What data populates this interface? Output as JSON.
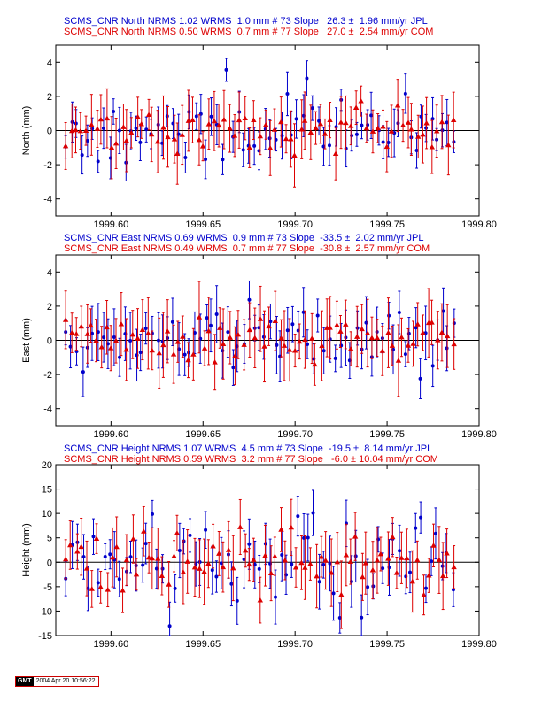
{
  "chart_data": [
    {
      "type": "scatter",
      "ylabel": "North (mm)",
      "xlim": [
        1999.57,
        1999.8
      ],
      "ylim": [
        -5,
        5
      ],
      "xticks": [
        1999.6,
        1999.65,
        1999.7,
        1999.75,
        1999.8
      ],
      "yticks": [
        -4,
        -2,
        0,
        2,
        4
      ],
      "tick_labels_x": [
        "1999.60",
        "1999.65",
        "1999.70",
        "1999.75",
        "1999.80"
      ],
      "tick_labels_y": [
        "-4",
        "-2",
        "0",
        "2",
        "4"
      ],
      "headers": [
        {
          "text": "SCMS_CNR North NRMS 1.02 WRMS  1.0 mm # 73 Slope   26.3 ±  1.96 mm/yr JPL",
          "color": "#0000cc"
        },
        {
          "text": "SCMS_CNR North NRMS 0.50 WRMS  0.7 mm # 77 Slope   27.0 ±  2.54 mm/yr COM",
          "color": "#dd0000"
        }
      ],
      "series": [
        {
          "color": "#0000cc",
          "marker": "circle",
          "noise": 1.0,
          "sigma": 1.0,
          "jitter": 1.0,
          "count": 73,
          "seed": 11
        },
        {
          "color": "#dd0000",
          "marker": "triangle",
          "noise": 0.7,
          "sigma": 1.5,
          "jitter": 0.9,
          "count": 77,
          "seed": 23
        }
      ]
    },
    {
      "type": "scatter",
      "ylabel": "East (mm)",
      "xlim": [
        1999.57,
        1999.8
      ],
      "ylim": [
        -5,
        5
      ],
      "xticks": [
        1999.6,
        1999.65,
        1999.7,
        1999.75,
        1999.8
      ],
      "yticks": [
        -4,
        -2,
        0,
        2,
        4
      ],
      "tick_labels_x": [
        "1999.60",
        "1999.65",
        "1999.70",
        "1999.75",
        "1999.80"
      ],
      "tick_labels_y": [
        "-4",
        "-2",
        "0",
        "2",
        "4"
      ],
      "headers": [
        {
          "text": "SCMS_CNR East NRMS 0.69 WRMS  0.9 mm # 73 Slope  -33.5 ±  2.02 mm/yr JPL",
          "color": "#0000cc"
        },
        {
          "text": "SCMS_CNR East NRMS 0.49 WRMS  0.7 mm # 77 Slope  -30.8 ±  2.57 mm/yr COM",
          "color": "#dd0000"
        }
      ],
      "series": [
        {
          "color": "#0000cc",
          "marker": "circle",
          "noise": 0.9,
          "sigma": 1.2,
          "jitter": 1.0,
          "count": 73,
          "seed": 37
        },
        {
          "color": "#dd0000",
          "marker": "triangle",
          "noise": 0.7,
          "sigma": 1.7,
          "jitter": 0.9,
          "count": 77,
          "seed": 53
        }
      ]
    },
    {
      "type": "scatter",
      "ylabel": "Height (mm)",
      "xlim": [
        1999.57,
        1999.8
      ],
      "ylim": [
        -15,
        20
      ],
      "xticks": [
        1999.6,
        1999.65,
        1999.7,
        1999.75,
        1999.8
      ],
      "yticks": [
        -15,
        -10,
        -5,
        0,
        5,
        10,
        15,
        20
      ],
      "tick_labels_x": [
        "1999.60",
        "1999.65",
        "1999.70",
        "1999.75",
        "1999.80"
      ],
      "tick_labels_y": [
        "-15",
        "-10",
        "-5",
        "0",
        "5",
        "10",
        "15",
        "20"
      ],
      "headers": [
        {
          "text": "SCMS_CNR Height NRMS 1.07 WRMS  4.5 mm # 73 Slope  -19.5 ±  8.14 mm/yr JPL",
          "color": "#0000cc"
        },
        {
          "text": "SCMS_CNR Height NRMS 0.59 WRMS  3.2 mm # 77 Slope   -6.0 ± 10.04 mm/yr COM",
          "color": "#dd0000"
        }
      ],
      "series": [
        {
          "color": "#0000cc",
          "marker": "circle",
          "noise": 4.5,
          "sigma": 4.2,
          "jitter": 1.0,
          "count": 73,
          "seed": 71
        },
        {
          "color": "#dd0000",
          "marker": "triangle",
          "noise": 3.2,
          "sigma": 5.5,
          "jitter": 0.9,
          "count": 77,
          "seed": 97
        }
      ]
    }
  ],
  "footer": {
    "logo": "GMT",
    "timestamp": "2004 Apr 20 10:56:22"
  }
}
